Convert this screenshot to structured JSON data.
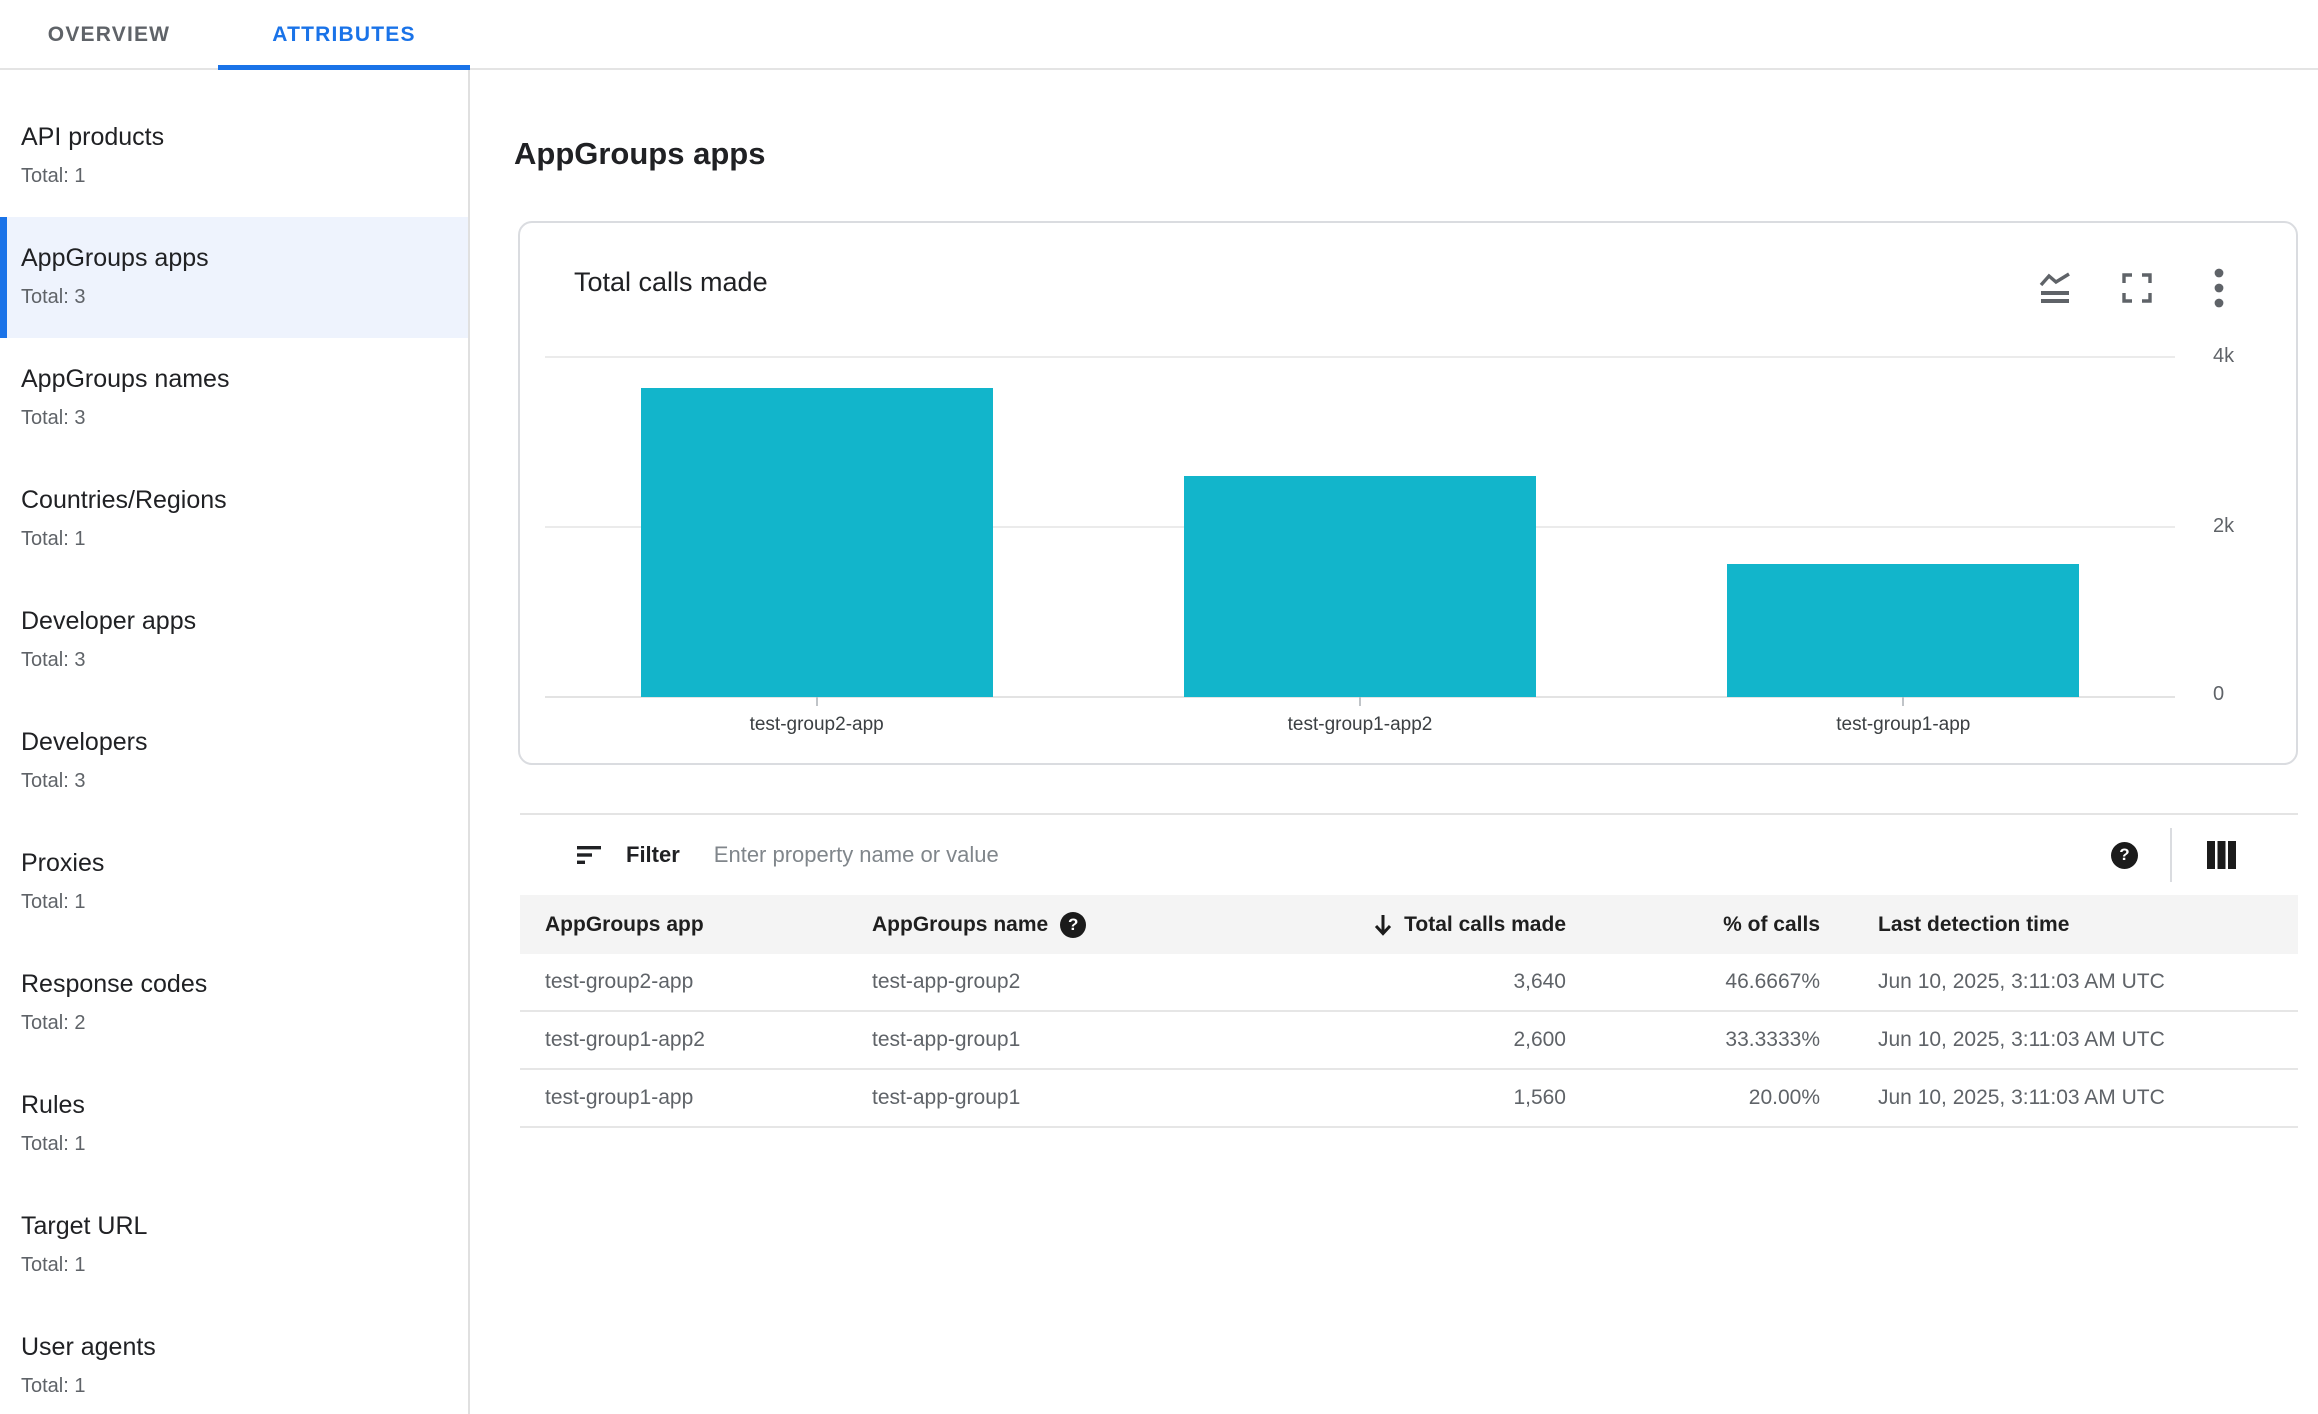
{
  "tabs": [
    {
      "label": "OVERVIEW",
      "active": false
    },
    {
      "label": "ATTRIBUTES",
      "active": true
    }
  ],
  "sidebar": {
    "items": [
      {
        "label": "API products",
        "total": "Total: 1",
        "selected": false
      },
      {
        "label": "AppGroups apps",
        "total": "Total: 3",
        "selected": true
      },
      {
        "label": "AppGroups names",
        "total": "Total: 3",
        "selected": false
      },
      {
        "label": "Countries/Regions",
        "total": "Total: 1",
        "selected": false
      },
      {
        "label": "Developer apps",
        "total": "Total: 3",
        "selected": false
      },
      {
        "label": "Developers",
        "total": "Total: 3",
        "selected": false
      },
      {
        "label": "Proxies",
        "total": "Total: 1",
        "selected": false
      },
      {
        "label": "Response codes",
        "total": "Total: 2",
        "selected": false
      },
      {
        "label": "Rules",
        "total": "Total: 1",
        "selected": false
      },
      {
        "label": "Target URL",
        "total": "Total: 1",
        "selected": false
      },
      {
        "label": "User agents",
        "total": "Total: 1",
        "selected": false
      }
    ]
  },
  "page": {
    "title": "AppGroups apps"
  },
  "chart_card": {
    "title": "Total calls made",
    "icons": [
      "stacked-line-chart-icon",
      "fullscreen-icon",
      "more-vert-icon"
    ]
  },
  "chart_data": {
    "type": "bar",
    "title": "Total calls made",
    "categories": [
      "test-group2-app",
      "test-group1-app2",
      "test-group1-app"
    ],
    "values": [
      3640,
      2600,
      1560
    ],
    "xlabel": "",
    "ylabel": "",
    "ylim": [
      0,
      4000
    ],
    "ytick_values": [
      4000,
      2000,
      0
    ],
    "ytick_labels": [
      "4k",
      "2k",
      "0"
    ],
    "bar_color": "#12b5cb",
    "grid": true,
    "legend": "none",
    "ytick_side": "right"
  },
  "filter": {
    "label": "Filter",
    "placeholder": "Enter property name or value",
    "icons": [
      "sort-filter-icon",
      "help-icon",
      "columns-icon"
    ]
  },
  "table": {
    "columns": [
      "AppGroups app",
      "AppGroups name",
      "Total calls made",
      "% of calls",
      "Last detection time"
    ],
    "sort": {
      "column": "Total calls made",
      "direction": "desc"
    },
    "rows": [
      {
        "app": "test-group2-app",
        "name": "test-app-group2",
        "calls": "3,640",
        "pct": "46.6667%",
        "time": "Jun 10, 2025, 3:11:03 AM UTC"
      },
      {
        "app": "test-group1-app2",
        "name": "test-app-group1",
        "calls": "2,600",
        "pct": "33.3333%",
        "time": "Jun 10, 2025, 3:11:03 AM UTC"
      },
      {
        "app": "test-group1-app",
        "name": "test-app-group1",
        "calls": "1,560",
        "pct": "20.00%",
        "time": "Jun 10, 2025, 3:11:03 AM UTC"
      }
    ]
  },
  "colors": {
    "accent": "#1a73e8",
    "bar": "#12b5cb",
    "selected_bg": "#eef3fd",
    "help_text": "?"
  }
}
